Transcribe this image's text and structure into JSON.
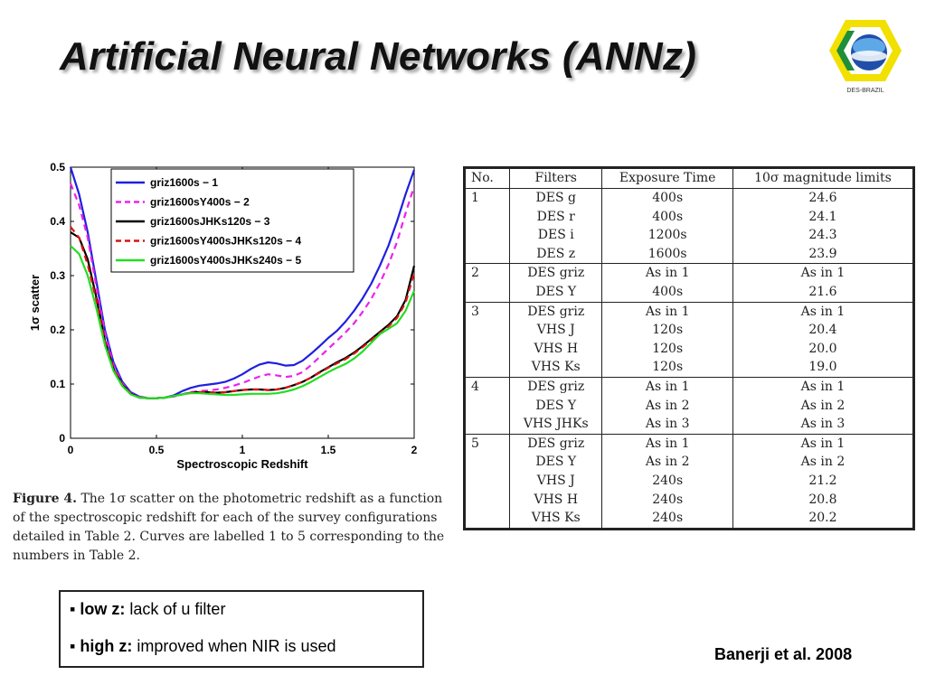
{
  "slide": {
    "title": "Artificial Neural Networks (ANNz)",
    "logo_text": "DES-BRAZIL",
    "reference": "Banerji et al. 2008"
  },
  "caption": {
    "label": "Figure 4.",
    "text": "The 1σ scatter on the photometric redshift as a function of the spectroscopic redshift for each of the survey configurations detailed in Table 2. Curves are labelled 1 to 5 corresponding to the numbers in Table 2."
  },
  "bullets": [
    {
      "bold": "low z:",
      "text": " lack of u filter"
    },
    {
      "bold": "high z:",
      "text": " improved when NIR is used"
    }
  ],
  "table": {
    "headers": [
      "No.",
      "Filters",
      "Exposure Time",
      "10σ magnitude limits"
    ],
    "groups": [
      {
        "no": "1",
        "rows": [
          [
            "DES g",
            "400s",
            "24.6"
          ],
          [
            "DES r",
            "400s",
            "24.1"
          ],
          [
            "DES i",
            "1200s",
            "24.3"
          ],
          [
            "DES z",
            "1600s",
            "23.9"
          ]
        ]
      },
      {
        "no": "2",
        "rows": [
          [
            "DES griz",
            "As in 1",
            "As in 1"
          ],
          [
            "DES Y",
            "400s",
            "21.6"
          ]
        ]
      },
      {
        "no": "3",
        "rows": [
          [
            "DES griz",
            "As in 1",
            "As in 1"
          ],
          [
            "VHS J",
            "120s",
            "20.4"
          ],
          [
            "VHS H",
            "120s",
            "20.0"
          ],
          [
            "VHS Ks",
            "120s",
            "19.0"
          ]
        ]
      },
      {
        "no": "4",
        "rows": [
          [
            "DES griz",
            "As in 1",
            "As in 1"
          ],
          [
            "DES Y",
            "As in 2",
            "As in 2"
          ],
          [
            "VHS JHKs",
            "As in 3",
            "As in 3"
          ]
        ]
      },
      {
        "no": "5",
        "rows": [
          [
            "DES griz",
            "As in 1",
            "As in 1"
          ],
          [
            "DES Y",
            "As in 2",
            "As in 2"
          ],
          [
            "VHS J",
            "240s",
            "21.2"
          ],
          [
            "VHS H",
            "240s",
            "20.8"
          ],
          [
            "VHS Ks",
            "240s",
            "20.2"
          ]
        ]
      }
    ]
  },
  "chart_data": {
    "type": "line",
    "xlabel": "Spectroscopic Redshift",
    "ylabel": "1σ scatter",
    "xlim": [
      0,
      2
    ],
    "ylim": [
      0,
      0.5
    ],
    "xticks": [
      "0",
      "0.5",
      "1",
      "1.5",
      "2"
    ],
    "yticks": [
      "0",
      "0.1",
      "0.2",
      "0.3",
      "0.4",
      "0.5"
    ],
    "legend_position": "top-right",
    "x": [
      0,
      0.05,
      0.1,
      0.15,
      0.2,
      0.25,
      0.3,
      0.35,
      0.4,
      0.45,
      0.5,
      0.55,
      0.6,
      0.65,
      0.7,
      0.75,
      0.8,
      0.85,
      0.9,
      0.95,
      1.0,
      1.05,
      1.1,
      1.15,
      1.2,
      1.25,
      1.3,
      1.35,
      1.4,
      1.45,
      1.5,
      1.55,
      1.6,
      1.65,
      1.7,
      1.75,
      1.8,
      1.85,
      1.9,
      1.95,
      2.0
    ],
    "series": [
      {
        "name": "griz1600s − 1",
        "color": "#1f1fe0",
        "style": "solid",
        "values": [
          0.5,
          0.45,
          0.38,
          0.29,
          0.2,
          0.14,
          0.105,
          0.085,
          0.077,
          0.074,
          0.074,
          0.075,
          0.079,
          0.087,
          0.093,
          0.097,
          0.099,
          0.101,
          0.104,
          0.11,
          0.118,
          0.128,
          0.136,
          0.14,
          0.138,
          0.134,
          0.135,
          0.143,
          0.156,
          0.17,
          0.185,
          0.198,
          0.215,
          0.235,
          0.258,
          0.285,
          0.318,
          0.355,
          0.4,
          0.45,
          0.495
        ]
      },
      {
        "name": "griz1600sY400s − 2",
        "color": "#ee20ee",
        "style": "dashed",
        "values": [
          0.47,
          0.43,
          0.37,
          0.28,
          0.195,
          0.135,
          0.102,
          0.083,
          0.076,
          0.074,
          0.074,
          0.075,
          0.077,
          0.081,
          0.085,
          0.087,
          0.088,
          0.09,
          0.093,
          0.097,
          0.102,
          0.108,
          0.114,
          0.118,
          0.116,
          0.113,
          0.115,
          0.122,
          0.135,
          0.15,
          0.165,
          0.18,
          0.195,
          0.212,
          0.233,
          0.257,
          0.286,
          0.32,
          0.362,
          0.415,
          0.465
        ]
      },
      {
        "name": "griz1600sJHKs120s − 3",
        "color": "#000000",
        "style": "solid",
        "values": [
          0.38,
          0.37,
          0.33,
          0.26,
          0.18,
          0.128,
          0.099,
          0.082,
          0.075,
          0.074,
          0.074,
          0.075,
          0.078,
          0.081,
          0.084,
          0.085,
          0.085,
          0.084,
          0.085,
          0.087,
          0.089,
          0.09,
          0.09,
          0.089,
          0.09,
          0.093,
          0.098,
          0.104,
          0.112,
          0.122,
          0.131,
          0.14,
          0.148,
          0.158,
          0.17,
          0.183,
          0.196,
          0.209,
          0.225,
          0.255,
          0.318
        ]
      },
      {
        "name": "griz1600sY400sJHKs120s − 4",
        "color": "#dd1111",
        "style": "dashed",
        "values": [
          0.39,
          0.37,
          0.32,
          0.255,
          0.178,
          0.127,
          0.099,
          0.082,
          0.075,
          0.074,
          0.074,
          0.075,
          0.078,
          0.081,
          0.084,
          0.085,
          0.085,
          0.084,
          0.085,
          0.087,
          0.089,
          0.09,
          0.09,
          0.089,
          0.09,
          0.093,
          0.098,
          0.104,
          0.112,
          0.121,
          0.13,
          0.138,
          0.146,
          0.156,
          0.168,
          0.181,
          0.194,
          0.206,
          0.222,
          0.25,
          0.305
        ]
      },
      {
        "name": "griz1600sY400sJHKs240s − 5",
        "color": "#22dd22",
        "style": "solid",
        "values": [
          0.355,
          0.34,
          0.3,
          0.24,
          0.172,
          0.124,
          0.097,
          0.081,
          0.075,
          0.074,
          0.074,
          0.075,
          0.078,
          0.081,
          0.083,
          0.083,
          0.082,
          0.081,
          0.08,
          0.08,
          0.081,
          0.082,
          0.082,
          0.082,
          0.083,
          0.086,
          0.09,
          0.096,
          0.104,
          0.113,
          0.122,
          0.13,
          0.137,
          0.147,
          0.16,
          0.176,
          0.192,
          0.202,
          0.212,
          0.235,
          0.272
        ]
      }
    ]
  }
}
